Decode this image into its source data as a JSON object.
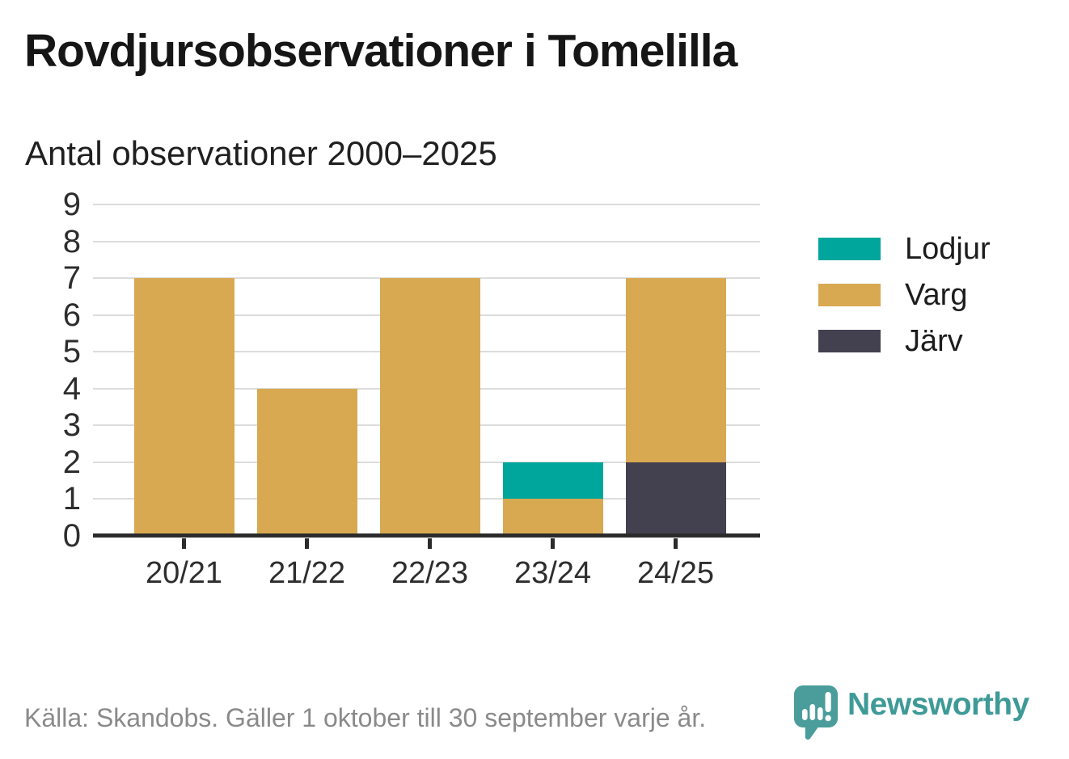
{
  "page": {
    "background": "#FFFFFF"
  },
  "header": {
    "title": "Rovdjursobservationer i Tomelilla",
    "subtitle": "Antal observationer 2000–2025"
  },
  "chart_data": {
    "type": "bar",
    "stacked": true,
    "title": "Rovdjursobservationer i Tomelilla",
    "subtitle": "Antal observationer 2000–2025",
    "categories": [
      "20/21",
      "21/22",
      "22/23",
      "23/24",
      "24/25"
    ],
    "series": [
      {
        "name": "Järv",
        "color": "#434050",
        "values": [
          0,
          0,
          0,
          0,
          2
        ]
      },
      {
        "name": "Varg",
        "color": "#D8A951",
        "values": [
          7,
          4,
          7,
          1,
          5
        ]
      },
      {
        "name": "Lodjur",
        "color": "#00A69B",
        "values": [
          0,
          0,
          0,
          1,
          0
        ]
      }
    ],
    "totals": [
      7,
      4,
      7,
      2,
      7
    ],
    "legend_order": [
      "Lodjur",
      "Varg",
      "Järv"
    ],
    "legend_position": "right",
    "xlabel": "",
    "ylabel": "",
    "ylim": [
      0,
      9
    ],
    "yticks": [
      0,
      1,
      2,
      3,
      4,
      5,
      6,
      7,
      8,
      9
    ],
    "grid": true,
    "axis_color": "#2B2B2B",
    "gridline_color": "#DCDCDC"
  },
  "footer": {
    "source": "Källa: Skandobs. Gäller 1 oktober till 30 september varje år.",
    "brand_name": "Newsworthy",
    "brand_text_color": "#3E9A97",
    "brand_bubble_color": "#4A9D9B"
  }
}
